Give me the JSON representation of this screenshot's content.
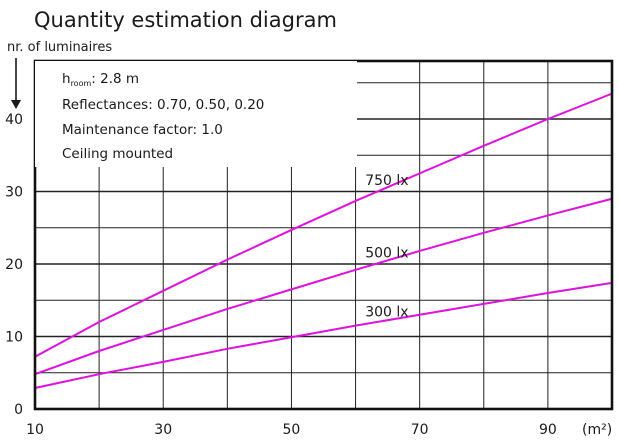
{
  "chart_data": {
    "type": "line",
    "title": "Quantity estimation diagram",
    "ylabel": "nr. of luminaires",
    "xunit": "(m²)",
    "xlim": [
      10,
      100
    ],
    "ylim": [
      0,
      48
    ],
    "x_ticks": [
      10,
      30,
      50,
      70,
      90
    ],
    "y_ticks": [
      0,
      10,
      20,
      30,
      40
    ],
    "grid": true,
    "annotations": {
      "room_height_symbol": "h",
      "room_height_subscript": "room",
      "room_height_value": ": 2.8 m",
      "reflectances": "Reflectances:  0.70, 0.50, 0.20",
      "maintenance": "Maintenance factor:  1.0",
      "mounting": "Ceiling mounted"
    },
    "series": [
      {
        "name": "750 lx",
        "color": "#e010e0",
        "x": [
          10,
          20,
          30,
          40,
          50,
          60,
          70,
          80,
          90,
          100
        ],
        "y": [
          7.2,
          12.0,
          16.3,
          20.6,
          24.7,
          28.7,
          32.5,
          36.3,
          40.0,
          43.5
        ]
      },
      {
        "name": "500 lx",
        "color": "#e010e0",
        "x": [
          10,
          20,
          30,
          40,
          50,
          60,
          70,
          80,
          90,
          100
        ],
        "y": [
          4.8,
          8.0,
          10.9,
          13.8,
          16.5,
          19.2,
          21.8,
          24.3,
          26.7,
          29.0
        ]
      },
      {
        "name": "300 lx",
        "color": "#e010e0",
        "x": [
          10,
          20,
          30,
          40,
          50,
          60,
          70,
          80,
          90,
          100
        ],
        "y": [
          2.9,
          4.8,
          6.5,
          8.3,
          9.9,
          11.5,
          13.0,
          14.5,
          16.0,
          17.4
        ]
      }
    ]
  }
}
